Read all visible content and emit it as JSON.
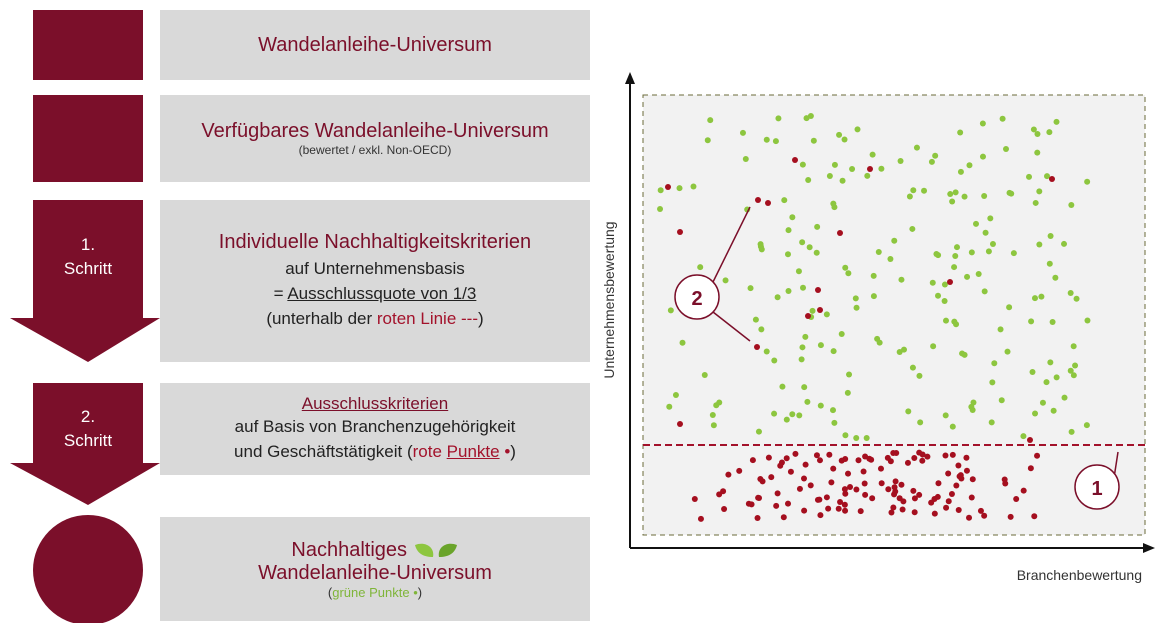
{
  "steps": [
    {
      "title": "Wandelanleihe-Universum"
    },
    {
      "title": "Verfügbares Wandelanleihe-Universum",
      "note": "(bewertet / exkl. Non-OECD)"
    },
    {
      "label": [
        "1.",
        "Schritt"
      ],
      "title": "Individuelle Nachhaltigkeitskriterien",
      "lines": [
        [
          "auf Unternehmensbasis"
        ],
        [
          "= ",
          "Ausschlussquote von 1/3"
        ],
        [
          "(unterhalb der ",
          "roten Linie ---",
          ")"
        ]
      ]
    },
    {
      "label": [
        "2.",
        "Schritt"
      ],
      "title": "Ausschlusskriterien",
      "lines": [
        [
          "auf Basis von Branchenzugehörigkeit"
        ],
        [
          "und Geschäftstätigkeit (",
          "rote ",
          "Punkte",
          " •",
          ")"
        ]
      ]
    },
    {
      "title": "Nachhaltiges",
      "title2": "Wandelanleihe-Universum",
      "lines": [
        [
          "(",
          "grüne Punkte •",
          ")"
        ]
      ]
    }
  ],
  "chart": {
    "y_label": "Unternehmensbewertung",
    "x_label": "Branchenbewertung",
    "callouts": [
      "1",
      "2"
    ]
  }
}
